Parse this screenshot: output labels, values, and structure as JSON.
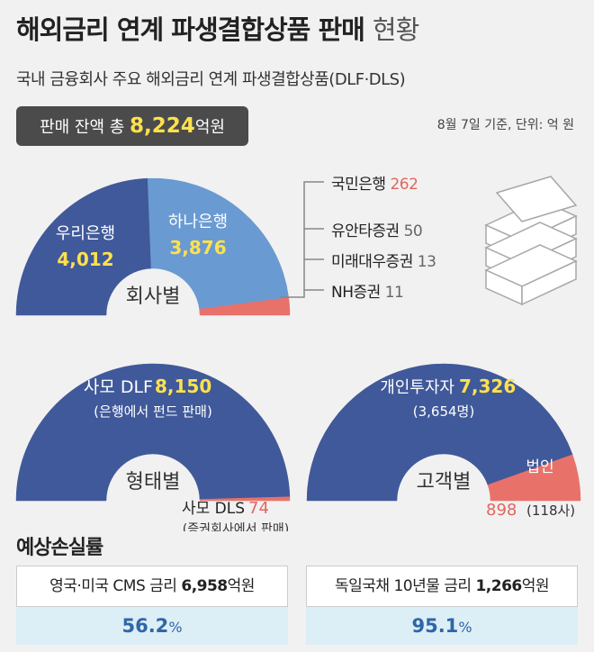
{
  "header": {
    "title_main": "해외금리 연계 파생결합상품 판매",
    "title_light": "현황",
    "subtitle": "국내 금융회사 주요 해외금리 연계 파생결합상품(DLF·DLS)",
    "total_label": "판매 잔액 총",
    "total_value": "8,224",
    "total_unit": "억원",
    "basis": "8월 7일 기준, 단위: 억 원"
  },
  "chart_data": [
    {
      "type": "pie",
      "variant": "semicircle",
      "center_label": "회사별",
      "slices": [
        {
          "name": "우리은행",
          "value": 4012,
          "value_label": "4,012",
          "color": "#40599a"
        },
        {
          "name": "하나은행",
          "value": 3876,
          "value_label": "3,876",
          "color": "#6a9ad2"
        },
        {
          "name": "국민은행",
          "value": 262,
          "value_label": "262",
          "color": "#e8726a"
        },
        {
          "name": "유안타증권",
          "value": 50,
          "value_label": "50",
          "color": "#e8726a"
        },
        {
          "name": "미래대우증권",
          "value": 13,
          "value_label": "13",
          "color": "#e8726a"
        },
        {
          "name": "NH증권",
          "value": 11,
          "value_label": "11",
          "color": "#e8726a"
        }
      ]
    },
    {
      "type": "pie",
      "variant": "semicircle",
      "center_label": "형태별",
      "slices": [
        {
          "name": "사모 DLF",
          "value": 8150,
          "value_label": "8,150",
          "note": "(은행에서 펀드 판매)",
          "color": "#40599a"
        },
        {
          "name": "사모 DLS",
          "value": 74,
          "value_label": "74",
          "note": "(증권회사에서 판매)",
          "color": "#e8726a"
        }
      ]
    },
    {
      "type": "pie",
      "variant": "semicircle",
      "center_label": "고객별",
      "slices": [
        {
          "name": "개인투자자",
          "value": 7326,
          "value_label": "7,326",
          "note": "(3,654명)",
          "color": "#40599a"
        },
        {
          "name": "법인",
          "value": 898,
          "value_label": "898",
          "note": "(118사)",
          "color": "#e8726a"
        }
      ]
    }
  ],
  "loss": {
    "title": "예상손실률",
    "cards": [
      {
        "label": "영국·미국 CMS 금리",
        "amount": "6,958",
        "unit": "억원",
        "rate": "56.2",
        "pct": "%"
      },
      {
        "label": "독일국채 10년물 금리",
        "amount": "1,266",
        "unit": "억원",
        "rate": "95.1",
        "pct": "%"
      }
    ]
  },
  "colors": {
    "dark_blue": "#40599a",
    "light_blue": "#6a9ad2",
    "salmon": "#e8726a",
    "yellow": "#ffe14d"
  },
  "icons": {
    "decoration": "money-stack-icon"
  }
}
